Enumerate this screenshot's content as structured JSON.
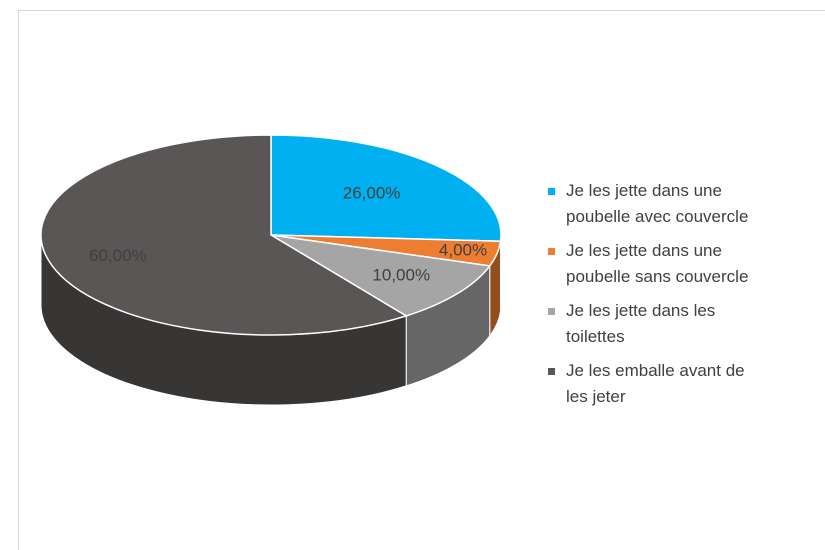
{
  "chart_data": {
    "type": "pie",
    "categories": [
      "Je les jette dans une poubelle avec couvercle",
      "Je les jette dans une poubelle sans couvercle",
      "Je les jette dans les toilettes",
      "Je les emballe avant de les jeter"
    ],
    "values": [
      26,
      4,
      10,
      60
    ],
    "value_labels": [
      "26,00%",
      "4,00%",
      "10,00%",
      "60,00%"
    ],
    "colors": [
      "#00b0f0",
      "#ed7d31",
      "#a5a5a5",
      "#5a5656"
    ],
    "legend": "right"
  }
}
